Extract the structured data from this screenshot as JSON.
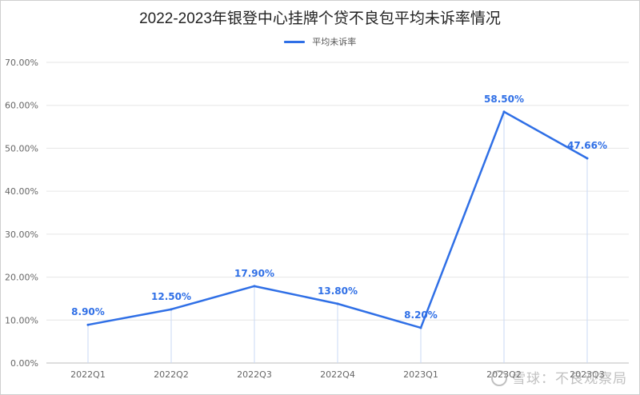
{
  "colors": {
    "line": "#2f6fe6",
    "label": "#2f6fe6",
    "grid": "#e6e6e6",
    "axis_text": "#666666",
    "drop_line": "#c9d9f5"
  },
  "watermark_text": "雪球：不良观察局",
  "chart_data": {
    "type": "line",
    "title": "2022-2023年银登中心挂牌个贷不良包平均未诉率情况",
    "xlabel": "",
    "ylabel": "",
    "legend_position": "top-center",
    "grid": true,
    "ylim": [
      0,
      70
    ],
    "y_ticks": [
      0,
      10,
      20,
      30,
      40,
      50,
      60,
      70
    ],
    "y_tick_labels": [
      "0.00%",
      "10.00%",
      "20.00%",
      "30.00%",
      "40.00%",
      "50.00%",
      "60.00%",
      "70.00%"
    ],
    "categories": [
      "2022Q1",
      "2022Q2",
      "2022Q3",
      "2022Q4",
      "2023Q1",
      "2023Q2",
      "2023Q3"
    ],
    "series": [
      {
        "name": "平均未诉率",
        "values": [
          8.9,
          12.5,
          17.9,
          13.8,
          8.2,
          58.5,
          47.66
        ],
        "data_labels": [
          "8.90%",
          "12.50%",
          "17.90%",
          "13.80%",
          "8.20%",
          "58.50%",
          "47.66%"
        ]
      }
    ]
  }
}
